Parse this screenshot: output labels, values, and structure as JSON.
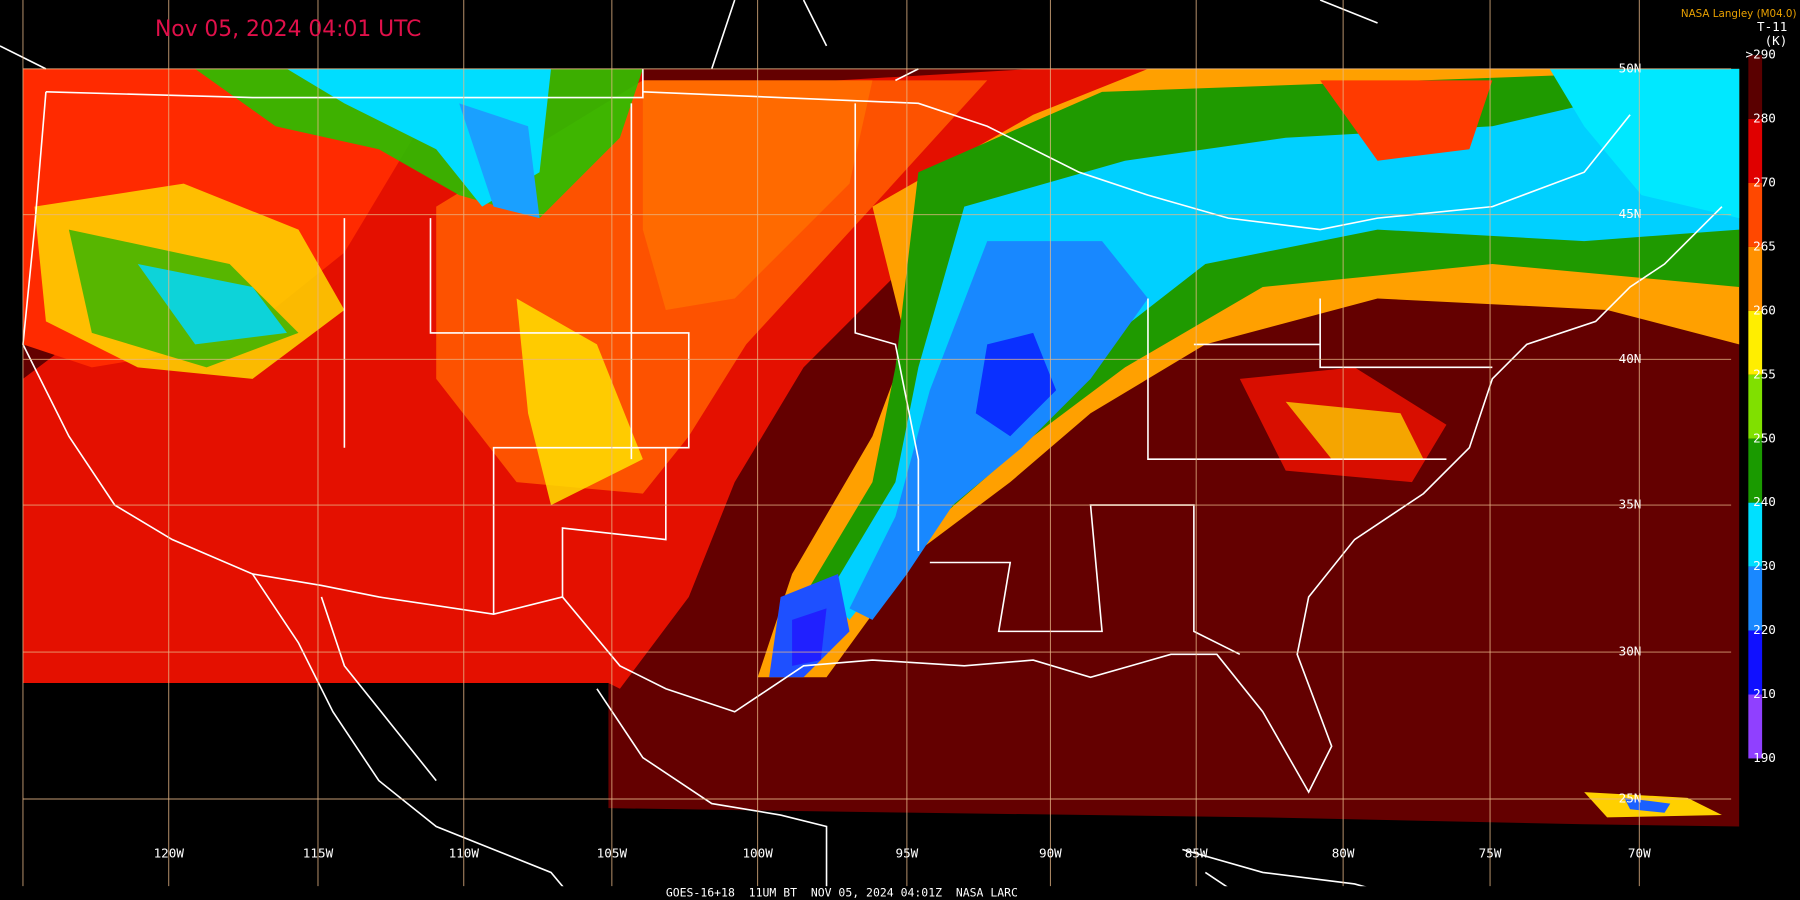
{
  "header": {
    "timestamp": "Nov 05, 2024 04:01 UTC",
    "credit": "NASA Langley (M04.0)"
  },
  "colorbar": {
    "title": [
      "T-11",
      "(K)"
    ],
    "labels": [
      ">290",
      "280",
      "270",
      "265",
      "260",
      "255",
      "250",
      "240",
      "230",
      "220",
      "210",
      "190"
    ]
  },
  "grid": {
    "latitudes": [
      "50N",
      "45N",
      "40N",
      "35N",
      "30N",
      "25N"
    ],
    "longitudes": [
      "120W",
      "115W",
      "110W",
      "105W",
      "100W",
      "95W",
      "90W",
      "85W",
      "80W",
      "75W",
      "70W"
    ]
  },
  "footer": "GOES-16+18  11UM BT  NOV 05, 2024 04:01Z  NASA LARC"
}
